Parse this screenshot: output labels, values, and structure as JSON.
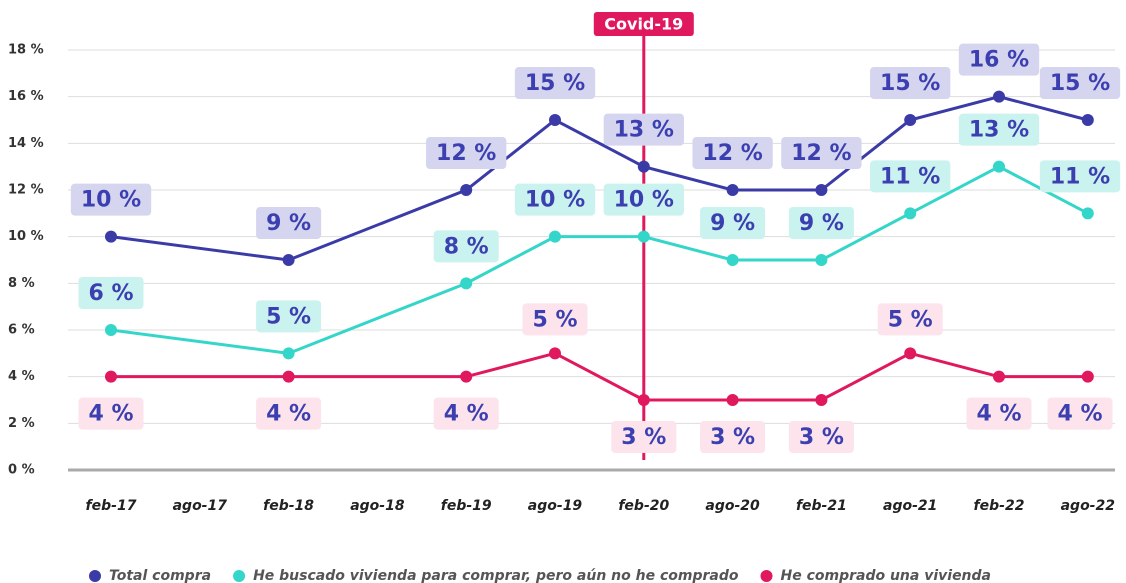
{
  "chart_data": {
    "type": "line",
    "categories": [
      "feb-17",
      "ago-17",
      "feb-18",
      "ago-18",
      "feb-19",
      "ago-19",
      "feb-20",
      "ago-20",
      "feb-21",
      "ago-21",
      "feb-22",
      "ago-22"
    ],
    "ylim": [
      0,
      18
    ],
    "yticks": [
      {
        "value": 0,
        "label": "0 %"
      },
      {
        "value": 2,
        "label": "2 %"
      },
      {
        "value": 4,
        "label": "4 %"
      },
      {
        "value": 6,
        "label": "6 %"
      },
      {
        "value": 8,
        "label": "8 %"
      },
      {
        "value": 10,
        "label": "10 %"
      },
      {
        "value": 12,
        "label": "12 %"
      },
      {
        "value": 14,
        "label": "14 %"
      },
      {
        "value": 16,
        "label": "16 %"
      },
      {
        "value": 18,
        "label": "18 %"
      }
    ],
    "grid": true,
    "annotation": {
      "text": "Covid-19",
      "x": "feb-20",
      "color": "#e0185e"
    },
    "series": [
      {
        "name": "Total compra",
        "color": "#3b3ba8",
        "label_bg": "#d5d5ef",
        "x": [
          "feb-17",
          "feb-18",
          "feb-19",
          "ago-19",
          "feb-20",
          "ago-20",
          "feb-21",
          "ago-21",
          "feb-22",
          "ago-22"
        ],
        "values": [
          10,
          9,
          12,
          15,
          13,
          12,
          12,
          15,
          16,
          15
        ],
        "value_labels": [
          "10 %",
          "9 %",
          "12 %",
          "15 %",
          "13 %",
          "12 %",
          "12 %",
          "15 %",
          "16 %",
          "15 %"
        ]
      },
      {
        "name": "He buscado vivienda para comprar, pero aún no he comprado",
        "color": "#33d6c8",
        "label_bg": "#caf2ef",
        "x": [
          "feb-17",
          "feb-18",
          "feb-19",
          "ago-19",
          "feb-20",
          "ago-20",
          "feb-21",
          "ago-21",
          "feb-22",
          "ago-22"
        ],
        "values": [
          6,
          5,
          8,
          10,
          10,
          9,
          9,
          11,
          13,
          11
        ],
        "value_labels": [
          "6 %",
          "5 %",
          "8 %",
          "10 %",
          "10 %",
          "9 %",
          "9 %",
          "11 %",
          "13 %",
          "11 %"
        ]
      },
      {
        "name": "He comprado una vivienda",
        "color": "#e0185e",
        "label_bg": "#fce3ec",
        "x": [
          "feb-17",
          "feb-18",
          "feb-19",
          "ago-19",
          "feb-20",
          "ago-20",
          "feb-21",
          "ago-21",
          "feb-22",
          "ago-22"
        ],
        "values": [
          4,
          4,
          4,
          5,
          3,
          3,
          3,
          5,
          4,
          4
        ],
        "value_labels": [
          "4 %",
          "4 %",
          "4 %",
          "5 %",
          "3 %",
          "3 %",
          "3 %",
          "5 %",
          "4 %",
          "4 %"
        ]
      }
    ]
  }
}
